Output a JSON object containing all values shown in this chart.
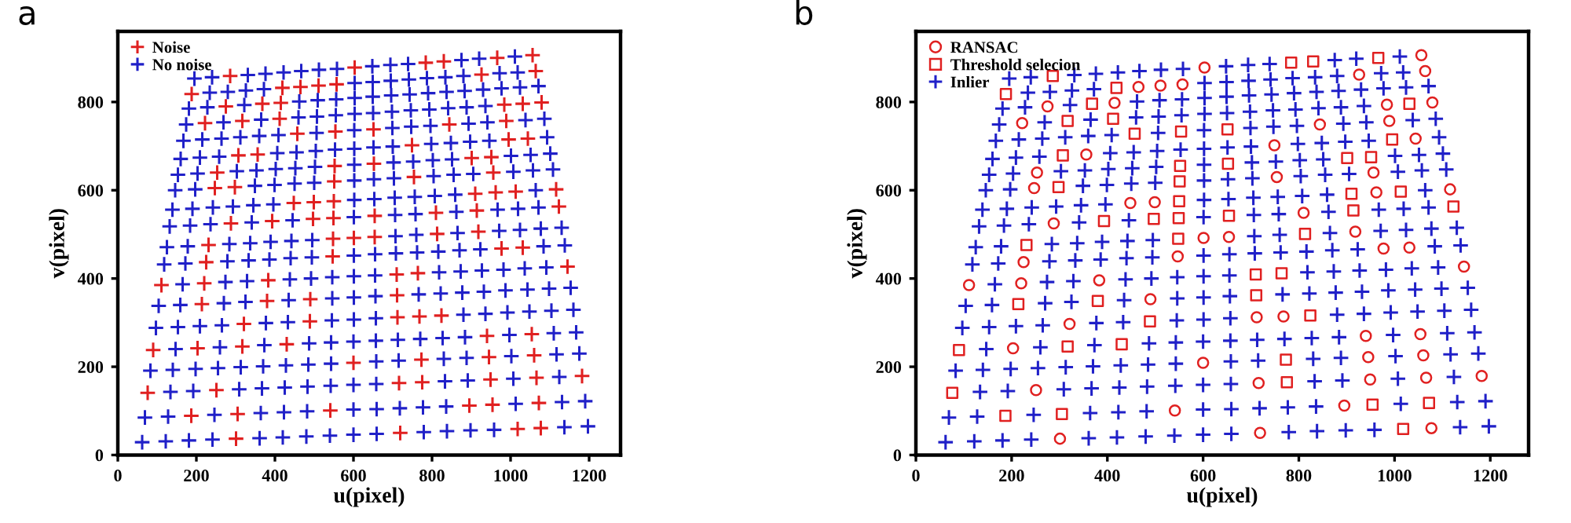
{
  "chart_data": [
    {
      "type": "scatter",
      "title": "a",
      "xlabel": "u(pixel)",
      "ylabel": "v(pixel)",
      "xlim": [
        0,
        1280
      ],
      "ylim": [
        0,
        960
      ],
      "xticks": [
        0,
        200,
        400,
        600,
        800,
        1000,
        1200
      ],
      "yticks": [
        0,
        200,
        400,
        600,
        800
      ],
      "grid": false,
      "legend": "top left",
      "series": [
        {
          "name": "Noise",
          "color": "#e02020",
          "marker": "cross",
          "x": [
            301,
            719,
            1077,
            541,
            895,
            251,
            716,
            949,
            1066,
            1182,
            600,
            945,
            1060,
            203,
            940,
            1054,
            321,
            712,
            768,
            490,
            111,
            220,
            383,
            1145,
            225,
            547,
            977,
            1031,
            601,
            654,
            918,
            288,
            810,
            448,
            499,
            962,
            1116,
            247,
            754,
            956,
            253,
            356,
            749,
            1044,
            844,
            989,
            222,
            984,
            1079,
            275,
            415,
            465,
            511,
            557,
            926,
            1064,
            603,
            1056,
            1018,
            187,
            305,
            954,
            1072,
            76,
            775,
            773,
            90,
            317,
            430,
            489,
            824,
            214,
            380,
            711,
            710,
            764,
            231,
            548,
            813,
            393,
            497,
            549,
            654,
            914,
            1123,
            550,
            910,
            1013,
            298,
            551,
            552,
            652,
            901,
            951,
            307,
            995,
            457,
            554,
            651,
            317,
            412,
            1031,
            368,
            188,
            419,
            286,
            784,
            830,
            966
          ],
          "values": [
            37,
            50,
            61,
            101,
            112,
            147,
            163,
            171,
            175,
            179,
            209,
            222,
            226,
            242,
            270,
            274,
            297,
            312,
            314,
            353,
            385,
            389,
            396,
            427,
            437,
            450,
            468,
            470,
            492,
            494,
            506,
            525,
            549,
            571,
            573,
            595,
            602,
            605,
            630,
            640,
            640,
            681,
            702,
            717,
            749,
            757,
            752,
            794,
            799,
            790,
            798,
            834,
            837,
            840,
            862,
            870,
            878,
            906,
            59,
            89,
            93,
            114,
            118,
            141,
            165,
            216,
            238,
            246,
            251,
            303,
            316,
            342,
            349,
            362,
            409,
            412,
            476,
            490,
            501,
            530,
            535,
            537,
            542,
            554,
            563,
            575,
            592,
            597,
            607,
            620,
            655,
            660,
            673,
            675,
            679,
            715,
            728,
            733,
            738,
            757,
            762,
            796,
            796,
            818,
            832,
            859,
            889,
            892,
            900
          ]
        },
        {
          "name": "No noise",
          "color": "#2020c8",
          "marker": "cross",
          "x": [
            62,
            122,
            181,
            241,
            361,
            420,
            480,
            540,
            600,
            659,
            779,
            838,
            898,
            958,
            1137,
            1197,
            69,
            128,
            246,
            364,
            423,
            482,
            600,
            659,
            718,
            777,
            836,
            1013,
            1131,
            1190,
            134,
            192,
            309,
            367,
            425,
            483,
            542,
            600,
            658,
            833,
            891,
            1007,
            1124,
            83,
            140,
            198,
            255,
            313,
            370,
            428,
            485,
            543,
            658,
            715,
            830,
            888,
            1002,
            1117,
            1175,
            147,
            260,
            373,
            487,
            543,
            600,
            657,
            713,
            770,
            827,
            884,
            997,
            1110,
            1167,
            97,
            153,
            209,
            265,
            377,
            433,
            545,
            601,
            657,
            880,
            936,
            992,
            1048,
            1104,
            1160,
            104,
            159,
            270,
            325,
            435,
            546,
            601,
            656,
            766,
            822,
            877,
            932,
            987,
            1043,
            1098,
            1153,
            165,
            274,
            329,
            438,
            492,
            546,
            601,
            655,
            818,
            873,
            927,
            982,
            1036,
            1091,
            118,
            172,
            279,
            333,
            386,
            440,
            494,
            601,
            655,
            708,
            762,
            816,
            870,
            923,
            1084,
            1138,
            125,
            178,
            284,
            337,
            389,
            442,
            495,
            707,
            760,
            865,
            971,
            1024,
            1077,
            1130,
            132,
            184,
            236,
            341,
            445,
            601,
            706,
            758,
            862,
            967,
            1019,
            1071,
            139,
            190,
            242,
            293,
            345,
            396,
            602,
            653,
            705,
            756,
            807,
            859,
            1064,
            146,
            197,
            349,
            399,
            450,
            500,
            602,
            652,
            703,
            804,
            855,
            905,
            1007,
            1057,
            1108,
            153,
            203,
            303,
            353,
            402,
            452,
            502,
            602,
            702,
            752,
            802,
            851,
            1001,
            1051,
            1101,
            160,
            209,
            258,
            406,
            455,
            504,
            553,
            602,
            651,
            700,
            798,
            848,
            897,
            946,
            1093,
            167,
            215,
            264,
            312,
            360,
            409,
            506,
            602,
            699,
            747,
            796,
            893,
            941,
            1038,
            1086,
            174,
            269,
            365,
            460,
            507,
            555,
            603,
            650,
            698,
            746,
            793,
            841,
            888,
            936,
            181,
            228,
            322,
            462,
            509,
            556,
            603,
            649,
            696,
            743,
            790,
            837,
            883,
            930,
            977,
            1024,
            1071,
            234,
            280,
            326,
            372,
            603,
            649,
            695,
            741,
            787,
            834,
            880,
            972,
            1018,
            195,
            240,
            331,
            376,
            422,
            467,
            512,
            558,
            648,
            694,
            739,
            875,
            920,
            1011
          ],
          "values": [
            29,
            31,
            33,
            35,
            38,
            40,
            42,
            44,
            46,
            48,
            52,
            54,
            56,
            57,
            63,
            65,
            85,
            87,
            91,
            95,
            97,
            99,
            103,
            104,
            106,
            108,
            110,
            116,
            120,
            122,
            143,
            145,
            149,
            151,
            153,
            155,
            157,
            159,
            161,
            167,
            169,
            173,
            177,
            191,
            193,
            195,
            197,
            199,
            201,
            203,
            205,
            207,
            212,
            214,
            218,
            220,
            224,
            228,
            230,
            240,
            244,
            249,
            253,
            255,
            257,
            259,
            261,
            263,
            265,
            267,
            272,
            276,
            278,
            288,
            290,
            292,
            294,
            299,
            301,
            305,
            307,
            310,
            318,
            320,
            323,
            325,
            327,
            329,
            338,
            340,
            344,
            347,
            351,
            355,
            357,
            360,
            364,
            366,
            368,
            370,
            373,
            375,
            377,
            379,
            387,
            392,
            394,
            398,
            400,
            403,
            405,
            407,
            414,
            416,
            418,
            420,
            423,
            425,
            432,
            434,
            439,
            441,
            443,
            446,
            448,
            452,
            455,
            457,
            459,
            461,
            464,
            466,
            473,
            475,
            471,
            473,
            478,
            480,
            483,
            485,
            487,
            496,
            499,
            503,
            508,
            510,
            513,
            515,
            518,
            520,
            523,
            527,
            532,
            539,
            544,
            546,
            551,
            556,
            558,
            561,
            556,
            558,
            561,
            563,
            566,
            568,
            578,
            580,
            583,
            585,
            587,
            590,
            600,
            600,
            602,
            610,
            612,
            615,
            617,
            622,
            625,
            627,
            632,
            635,
            637,
            642,
            645,
            647,
            635,
            638,
            643,
            645,
            648,
            650,
            653,
            658,
            663,
            665,
            668,
            670,
            678,
            680,
            683,
            671,
            674,
            676,
            684,
            686,
            689,
            692,
            694,
            697,
            699,
            705,
            707,
            710,
            712,
            720,
            712,
            715,
            717,
            720,
            723,
            725,
            730,
            736,
            741,
            744,
            746,
            751,
            754,
            759,
            762,
            749,
            754,
            760,
            765,
            767,
            770,
            773,
            775,
            778,
            781,
            783,
            786,
            788,
            791,
            785,
            788,
            793,
            801,
            804,
            806,
            809,
            812,
            815,
            817,
            820,
            823,
            825,
            828,
            831,
            833,
            836,
            821,
            823,
            826,
            829,
            843,
            845,
            848,
            851,
            854,
            856,
            859,
            865,
            867,
            853,
            856,
            861,
            864,
            867,
            870,
            873,
            875,
            881,
            884,
            886,
            895,
            898,
            903
          ]
        }
      ]
    },
    {
      "type": "scatter",
      "title": "b",
      "xlabel": "u(pixel)",
      "ylabel": "v(pixel)",
      "xlim": [
        0,
        1280
      ],
      "ylim": [
        0,
        960
      ],
      "xticks": [
        0,
        200,
        400,
        600,
        800,
        1000,
        1200
      ],
      "yticks": [
        0,
        200,
        400,
        600,
        800
      ],
      "grid": false,
      "legend": "top left",
      "series": [
        {
          "name": "RANSAC",
          "color": "#e02020",
          "marker": "circle",
          "x": [
            301,
            719,
            1077,
            541,
            895,
            251,
            716,
            949,
            1066,
            1182,
            600,
            945,
            1060,
            203,
            940,
            1054,
            321,
            712,
            768,
            490,
            111,
            220,
            383,
            1145,
            225,
            547,
            977,
            1031,
            601,
            654,
            918,
            288,
            810,
            448,
            499,
            962,
            1116,
            247,
            754,
            956,
            253,
            356,
            749,
            1044,
            844,
            989,
            222,
            984,
            1079,
            275,
            415,
            465,
            511,
            557,
            926,
            1064,
            603,
            1056
          ],
          "values": [
            37,
            50,
            61,
            101,
            112,
            147,
            163,
            171,
            175,
            179,
            209,
            222,
            226,
            242,
            270,
            274,
            297,
            312,
            314,
            353,
            385,
            389,
            396,
            427,
            437,
            450,
            468,
            470,
            492,
            494,
            506,
            525,
            549,
            571,
            573,
            595,
            602,
            605,
            630,
            640,
            640,
            681,
            702,
            717,
            749,
            757,
            752,
            794,
            799,
            790,
            798,
            834,
            837,
            840,
            862,
            870,
            878,
            906
          ]
        },
        {
          "name": "Threshold selecion",
          "color": "#e02020",
          "marker": "square",
          "x": [
            1018,
            187,
            305,
            954,
            1072,
            76,
            775,
            773,
            90,
            317,
            430,
            489,
            824,
            214,
            380,
            711,
            710,
            764,
            231,
            548,
            813,
            393,
            497,
            549,
            654,
            914,
            1123,
            550,
            910,
            1013,
            298,
            551,
            552,
            652,
            901,
            951,
            307,
            995,
            457,
            554,
            651,
            317,
            412,
            1031,
            368,
            188,
            419,
            286,
            784,
            830,
            966
          ],
          "values": [
            59,
            89,
            93,
            114,
            118,
            141,
            165,
            216,
            238,
            246,
            251,
            303,
            316,
            342,
            349,
            362,
            409,
            412,
            476,
            490,
            501,
            530,
            535,
            537,
            542,
            554,
            563,
            575,
            592,
            597,
            607,
            620,
            655,
            660,
            673,
            675,
            679,
            715,
            728,
            733,
            738,
            757,
            762,
            796,
            796,
            818,
            832,
            859,
            889,
            892,
            900
          ]
        },
        {
          "name": "Inlier",
          "color": "#2020c8",
          "marker": "cross",
          "x": [
            62,
            122,
            181,
            241,
            361,
            420,
            480,
            540,
            600,
            659,
            779,
            838,
            898,
            958,
            1137,
            1197,
            69,
            128,
            246,
            364,
            423,
            482,
            600,
            659,
            718,
            777,
            836,
            1013,
            1131,
            1190,
            134,
            192,
            309,
            367,
            425,
            483,
            542,
            600,
            658,
            833,
            891,
            1007,
            1124,
            83,
            140,
            198,
            255,
            313,
            370,
            428,
            485,
            543,
            658,
            715,
            830,
            888,
            1002,
            1117,
            1175,
            147,
            260,
            373,
            487,
            543,
            600,
            657,
            713,
            770,
            827,
            884,
            997,
            1110,
            1167,
            97,
            153,
            209,
            265,
            377,
            433,
            545,
            601,
            657,
            880,
            936,
            992,
            1048,
            1104,
            1160,
            104,
            159,
            270,
            325,
            435,
            546,
            601,
            656,
            766,
            822,
            877,
            932,
            987,
            1043,
            1098,
            1153,
            165,
            274,
            329,
            438,
            492,
            546,
            601,
            655,
            818,
            873,
            927,
            982,
            1036,
            1091,
            118,
            172,
            279,
            333,
            386,
            440,
            494,
            601,
            655,
            708,
            762,
            816,
            870,
            923,
            1084,
            1138,
            125,
            178,
            284,
            337,
            389,
            442,
            495,
            707,
            760,
            865,
            971,
            1024,
            1077,
            1130,
            132,
            184,
            236,
            341,
            445,
            601,
            706,
            758,
            862,
            967,
            1019,
            1071,
            139,
            190,
            242,
            293,
            345,
            396,
            602,
            653,
            705,
            756,
            807,
            859,
            1064,
            146,
            197,
            349,
            399,
            450,
            500,
            602,
            652,
            703,
            804,
            855,
            905,
            1007,
            1057,
            1108,
            153,
            203,
            303,
            353,
            402,
            452,
            502,
            602,
            702,
            752,
            802,
            851,
            1001,
            1051,
            1101,
            160,
            209,
            258,
            406,
            455,
            504,
            553,
            602,
            651,
            700,
            798,
            848,
            897,
            946,
            1093,
            167,
            215,
            264,
            312,
            360,
            409,
            506,
            602,
            699,
            747,
            796,
            893,
            941,
            1038,
            1086,
            174,
            269,
            365,
            460,
            507,
            555,
            603,
            650,
            698,
            746,
            793,
            841,
            888,
            936,
            181,
            228,
            322,
            462,
            509,
            556,
            603,
            649,
            696,
            743,
            790,
            837,
            883,
            930,
            977,
            1024,
            1071,
            234,
            280,
            326,
            372,
            603,
            649,
            695,
            741,
            787,
            834,
            880,
            972,
            1018,
            195,
            240,
            331,
            376,
            422,
            467,
            512,
            558,
            648,
            694,
            739,
            875,
            920,
            1011
          ],
          "values": [
            29,
            31,
            33,
            35,
            38,
            40,
            42,
            44,
            46,
            48,
            52,
            54,
            56,
            57,
            63,
            65,
            85,
            87,
            91,
            95,
            97,
            99,
            103,
            104,
            106,
            108,
            110,
            116,
            120,
            122,
            143,
            145,
            149,
            151,
            153,
            155,
            157,
            159,
            161,
            167,
            169,
            173,
            177,
            191,
            193,
            195,
            197,
            199,
            201,
            203,
            205,
            207,
            212,
            214,
            218,
            220,
            224,
            228,
            230,
            240,
            244,
            249,
            253,
            255,
            257,
            259,
            261,
            263,
            265,
            267,
            272,
            276,
            278,
            288,
            290,
            292,
            294,
            299,
            301,
            305,
            307,
            310,
            318,
            320,
            323,
            325,
            327,
            329,
            338,
            340,
            344,
            347,
            351,
            355,
            357,
            360,
            364,
            366,
            368,
            370,
            373,
            375,
            377,
            379,
            387,
            392,
            394,
            398,
            400,
            403,
            405,
            407,
            414,
            416,
            418,
            420,
            423,
            425,
            432,
            434,
            439,
            441,
            443,
            446,
            448,
            452,
            455,
            457,
            459,
            461,
            464,
            466,
            473,
            475,
            471,
            473,
            478,
            480,
            483,
            485,
            487,
            496,
            499,
            503,
            508,
            510,
            513,
            515,
            518,
            520,
            523,
            527,
            532,
            539,
            544,
            546,
            551,
            556,
            558,
            561,
            556,
            558,
            561,
            563,
            566,
            568,
            578,
            580,
            583,
            585,
            587,
            590,
            600,
            600,
            602,
            610,
            612,
            615,
            617,
            622,
            625,
            627,
            632,
            635,
            637,
            642,
            645,
            647,
            635,
            638,
            643,
            645,
            648,
            650,
            653,
            658,
            663,
            665,
            668,
            670,
            678,
            680,
            683,
            671,
            674,
            676,
            684,
            686,
            689,
            692,
            694,
            697,
            699,
            705,
            707,
            710,
            712,
            720,
            712,
            715,
            717,
            720,
            723,
            725,
            730,
            736,
            741,
            744,
            746,
            751,
            754,
            759,
            762,
            749,
            754,
            760,
            765,
            767,
            770,
            773,
            775,
            778,
            781,
            783,
            786,
            788,
            791,
            785,
            788,
            793,
            801,
            804,
            806,
            809,
            812,
            815,
            817,
            820,
            823,
            825,
            828,
            831,
            833,
            836,
            821,
            823,
            826,
            829,
            843,
            845,
            848,
            851,
            854,
            856,
            859,
            865,
            867,
            853,
            856,
            861,
            864,
            867,
            870,
            873,
            875,
            881,
            884,
            886,
            895,
            898,
            903
          ]
        }
      ]
    }
  ]
}
